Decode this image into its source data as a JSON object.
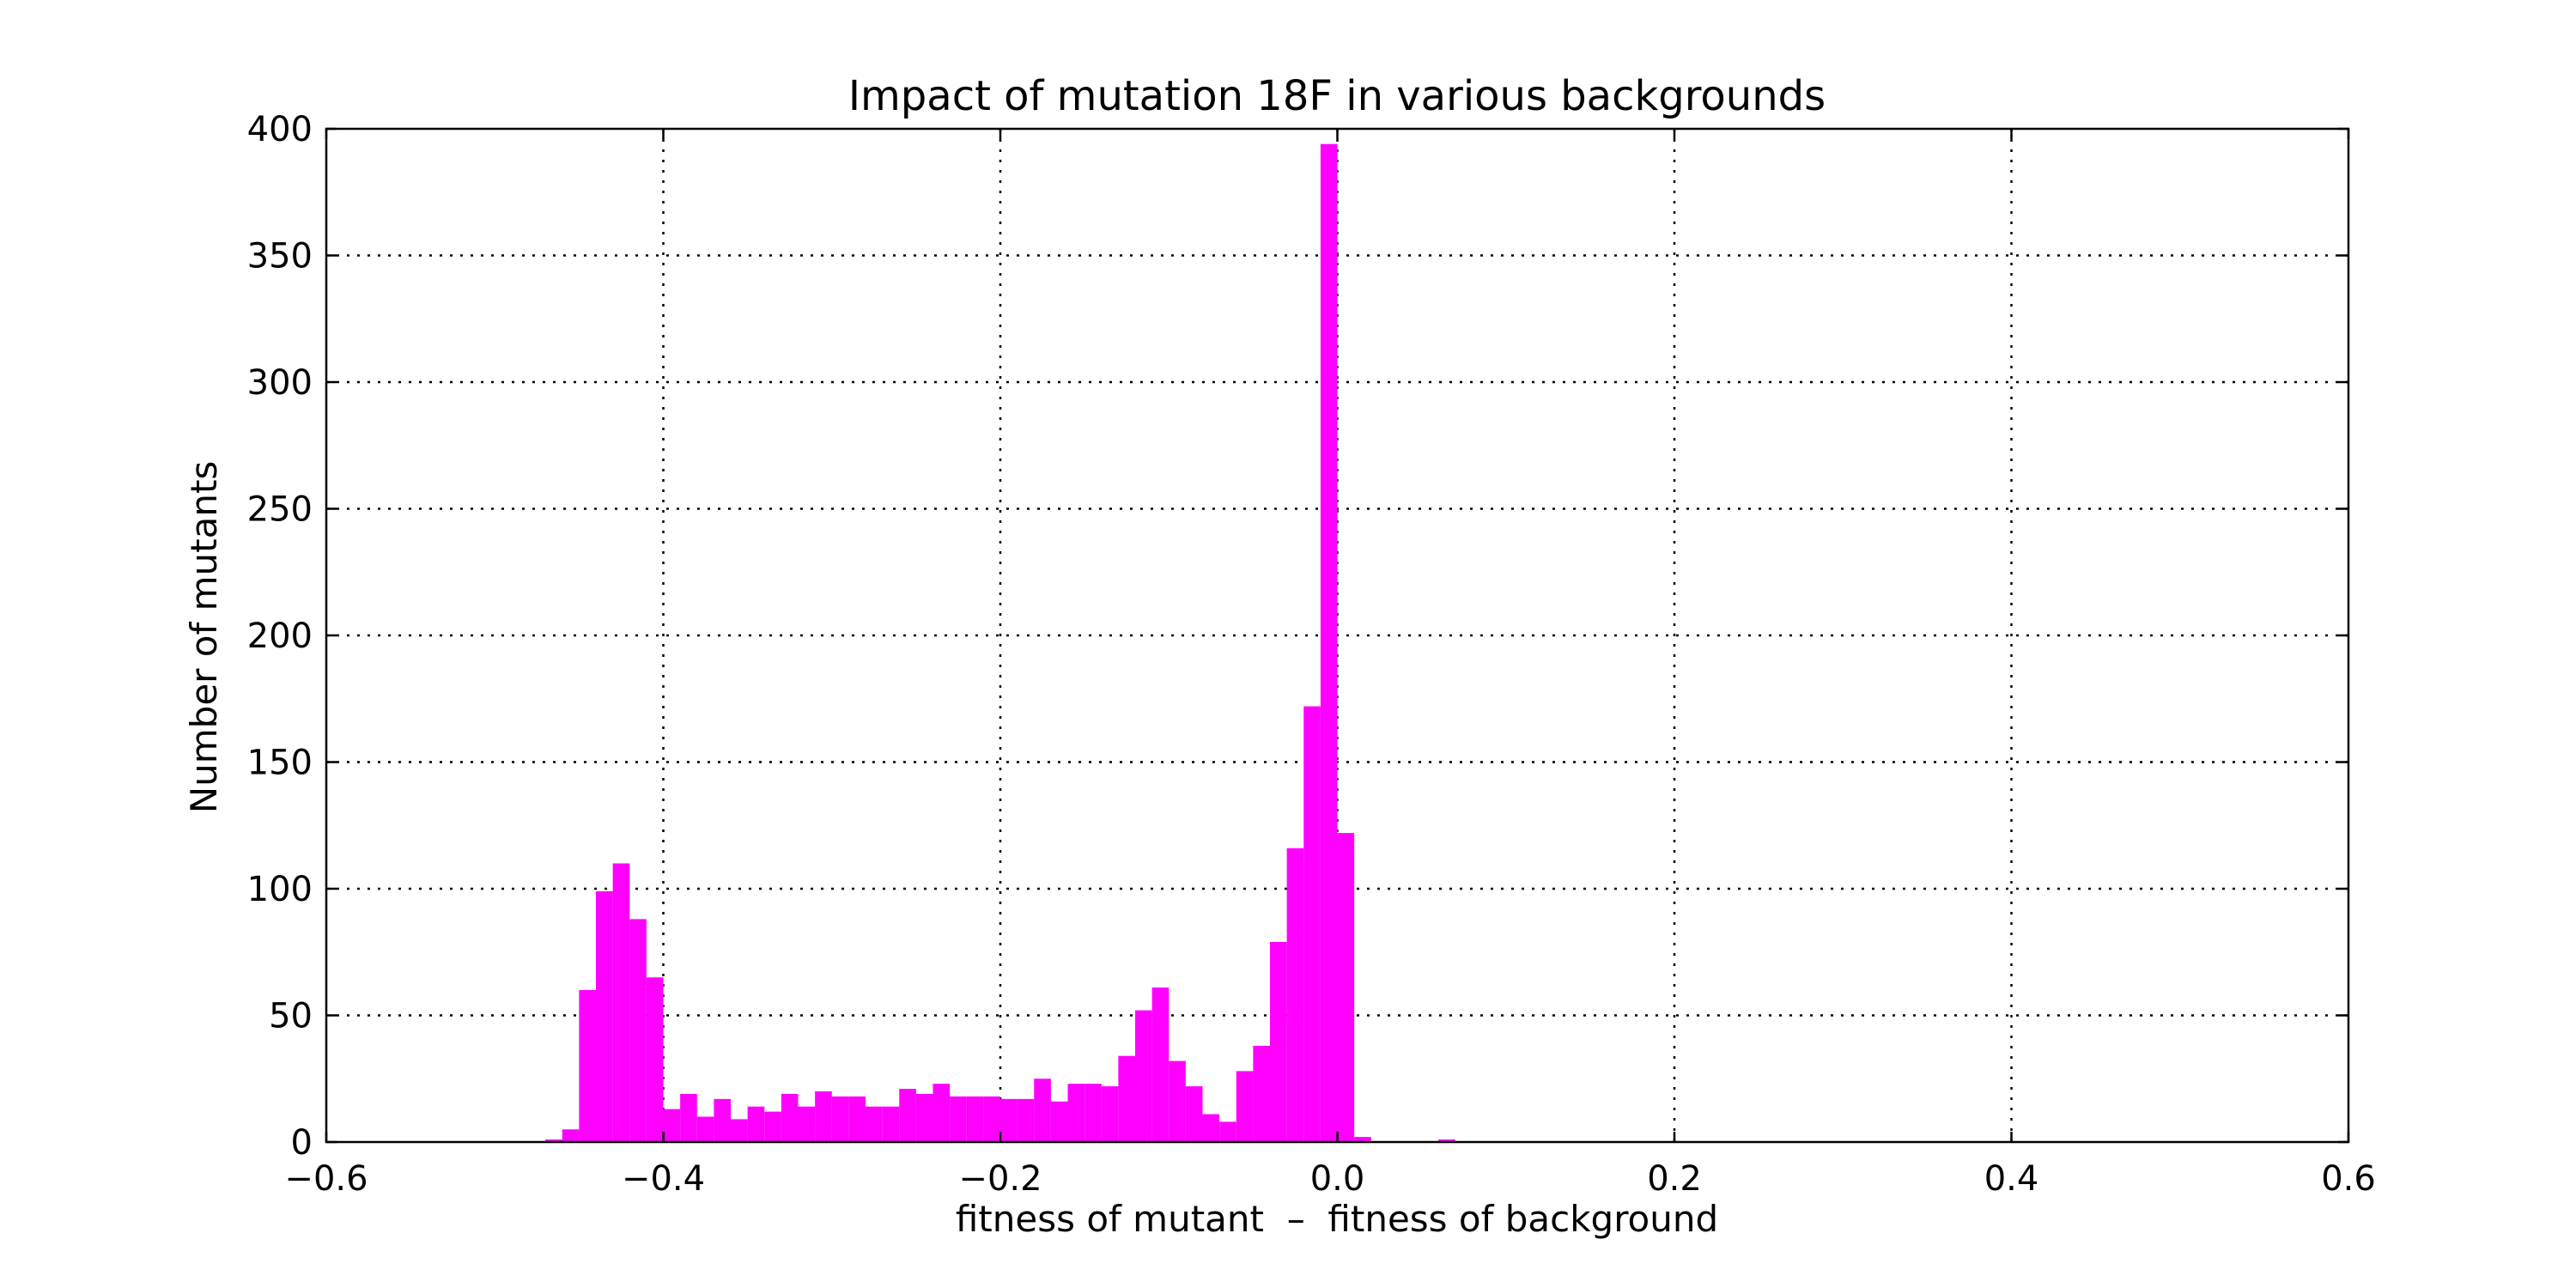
{
  "chart_data": {
    "type": "bar",
    "title": "Impact of mutation 18F in various backgrounds",
    "xlabel": "fitness of mutant  –  fitness of background",
    "ylabel": "Number of mutants",
    "xlim": [
      -0.6,
      0.6
    ],
    "ylim": [
      0,
      400
    ],
    "xticks": [
      -0.6,
      -0.4,
      -0.2,
      0.0,
      0.2,
      0.4,
      0.6
    ],
    "xtick_labels": [
      "−0.6",
      "−0.4",
      "−0.2",
      "0.0",
      "0.2",
      "0.4",
      "0.6"
    ],
    "yticks": [
      0,
      50,
      100,
      150,
      200,
      250,
      300,
      350,
      400
    ],
    "ytick_labels": [
      "0",
      "50",
      "100",
      "150",
      "200",
      "250",
      "300",
      "350",
      "400"
    ],
    "grid": true,
    "bar_color": "#ff00ff",
    "bin_width": 0.01,
    "bin_starts": [
      -0.47,
      -0.46,
      -0.45,
      -0.44,
      -0.43,
      -0.42,
      -0.41,
      -0.4,
      -0.39,
      -0.38,
      -0.37,
      -0.36,
      -0.35,
      -0.34,
      -0.33,
      -0.32,
      -0.31,
      -0.3,
      -0.29,
      -0.28,
      -0.27,
      -0.26,
      -0.25,
      -0.24,
      -0.23,
      -0.22,
      -0.21,
      -0.2,
      -0.19,
      -0.18,
      -0.17,
      -0.16,
      -0.15,
      -0.14,
      -0.13,
      -0.12,
      -0.11,
      -0.1,
      -0.09,
      -0.08,
      -0.07,
      -0.06,
      -0.05,
      -0.04,
      -0.03,
      -0.02,
      -0.01,
      0.0,
      0.01,
      0.06
    ],
    "values": [
      1,
      5,
      60,
      99,
      110,
      88,
      65,
      13,
      19,
      10,
      17,
      9,
      14,
      12,
      19,
      14,
      20,
      18,
      18,
      14,
      14,
      21,
      19,
      23,
      18,
      18,
      18,
      17,
      17,
      25,
      16,
      23,
      23,
      22,
      34,
      52,
      61,
      32,
      22,
      11,
      8,
      28,
      38,
      79,
      116,
      172,
      394,
      122,
      2,
      1
    ]
  }
}
